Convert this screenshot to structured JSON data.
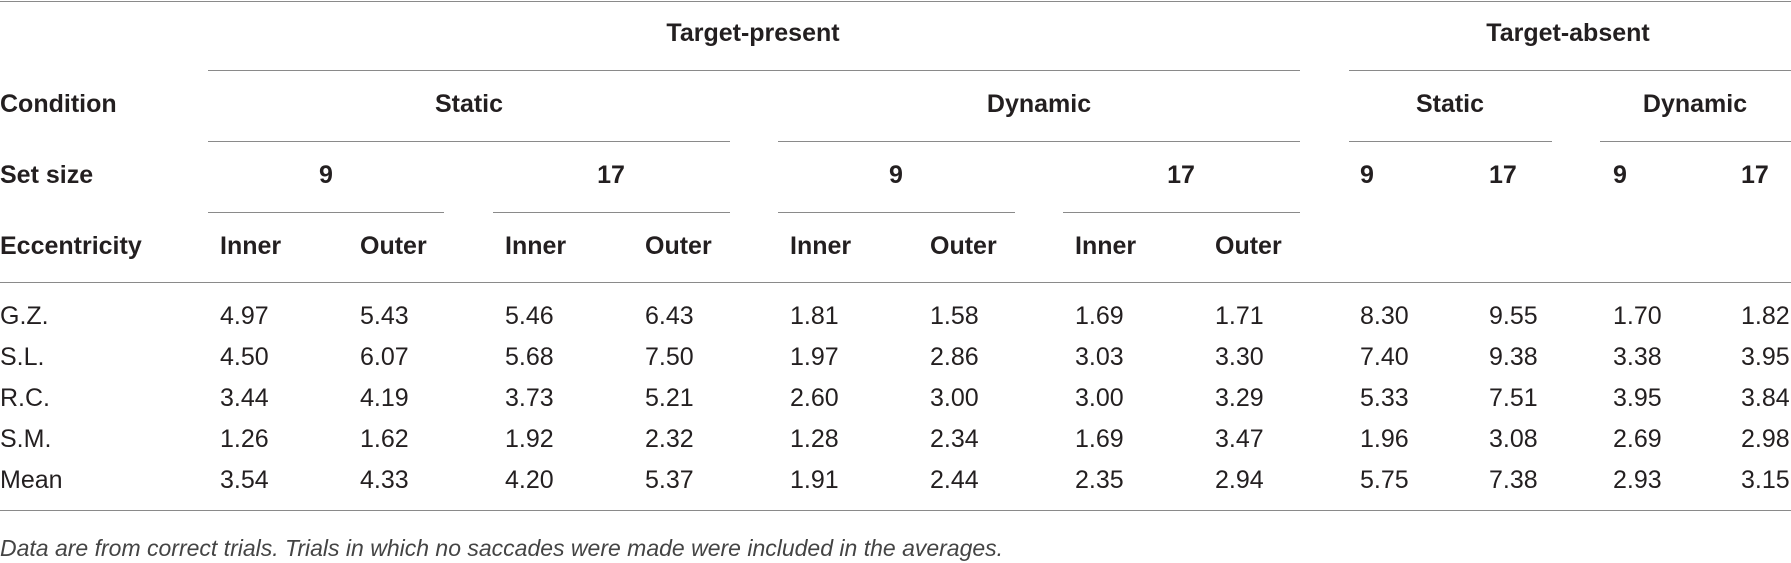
{
  "table": {
    "groups": {
      "present": "Target-present",
      "absent": "Target-absent"
    },
    "row_labels": {
      "condition": "Condition",
      "set_size": "Set size",
      "eccentricity": "Eccentricity"
    },
    "conditions": {
      "static": "Static",
      "dynamic": "Dynamic"
    },
    "set_sizes": {
      "nine": "9",
      "seventeen": "17"
    },
    "eccentricities": {
      "inner": "Inner",
      "outer": "Outer"
    },
    "rows": [
      {
        "label": "G.Z.",
        "values": [
          "4.97",
          "5.43",
          "5.46",
          "6.43",
          "1.81",
          "1.58",
          "1.69",
          "1.71",
          "8.30",
          "9.55",
          "1.70",
          "1.82"
        ]
      },
      {
        "label": "S.L.",
        "values": [
          "4.50",
          "6.07",
          "5.68",
          "7.50",
          "1.97",
          "2.86",
          "3.03",
          "3.30",
          "7.40",
          "9.38",
          "3.38",
          "3.95"
        ]
      },
      {
        "label": "R.C.",
        "values": [
          "3.44",
          "4.19",
          "3.73",
          "5.21",
          "2.60",
          "3.00",
          "3.00",
          "3.29",
          "5.33",
          "7.51",
          "3.95",
          "3.84"
        ]
      },
      {
        "label": "S.M.",
        "values": [
          "1.26",
          "1.62",
          "1.92",
          "2.32",
          "1.28",
          "2.34",
          "1.69",
          "3.47",
          "1.96",
          "3.08",
          "2.69",
          "2.98"
        ]
      },
      {
        "label": "Mean",
        "values": [
          "3.54",
          "4.33",
          "4.20",
          "5.37",
          "1.91",
          "2.44",
          "2.35",
          "2.94",
          "5.75",
          "7.38",
          "2.93",
          "3.15"
        ]
      }
    ],
    "footnote": "Data are from correct trials. Trials in which no saccades were made were included in the averages."
  }
}
